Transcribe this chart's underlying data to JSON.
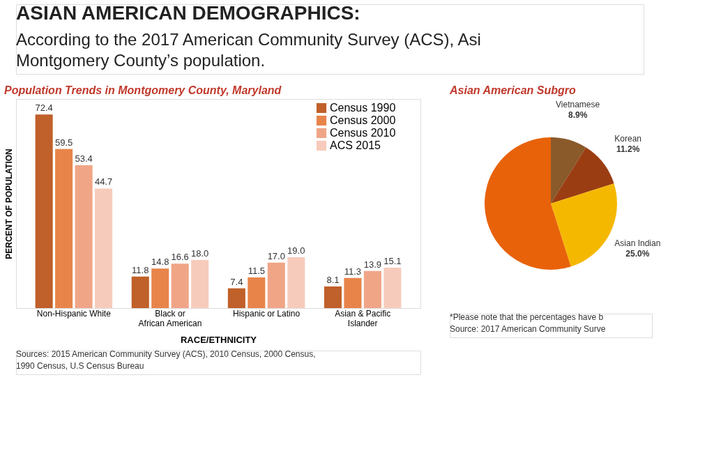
{
  "chart_data": [
    {
      "type": "other",
      "title": "ASIAN AMERICAN DEMOGRAPHICS:",
      "subtitle": "According to the 2017 American Community Survey (ACS), Asi\nMontgomery County’s population."
    },
    {
      "type": "bar",
      "title": "Population Trends in Montgomery County, Maryland",
      "xlabel": "RACE/ETHNICITY",
      "ylabel": "PERCENT OF POPULATION",
      "categories": [
        "Non-Hispanic White",
        "Black or\nAfrican American",
        "Hispanic or Latino",
        "Asian & Pacific\nIslander"
      ],
      "series": [
        {
          "name": "Census 1990",
          "color": "#c0602a",
          "values": [
            72.4,
            11.8,
            7.4,
            8.1
          ],
          "value_labels": [
            "72.4",
            "11.8",
            "7.4",
            "8.1"
          ]
        },
        {
          "name": "Census 2000",
          "color": "#e8844a",
          "values": [
            59.5,
            14.8,
            11.5,
            11.3
          ],
          "value_labels": [
            "59.5",
            "14.8",
            "11.5",
            "11.3"
          ]
        },
        {
          "name": "Census 2010",
          "color": "#f0a587",
          "values": [
            53.4,
            16.6,
            17.0,
            13.9
          ],
          "value_labels": [
            "53.4",
            "16.6",
            "17.0",
            "13.9"
          ]
        },
        {
          "name": "ACS 2015",
          "color": "#f7cbbb",
          "values": [
            44.7,
            18.0,
            19.0,
            15.1
          ],
          "value_labels": [
            "44.7",
            "18.0",
            "19.0",
            "15.1"
          ]
        }
      ],
      "legend": "top right",
      "grid": false,
      "tick_labels": "x",
      "annotations": [
        "Sources: 2015 American Community Survey (ACS), 2010 Census, 2000 Census,\n1990 Census, U.S Census Bureau"
      ]
    },
    {
      "type": "pie",
      "title": "Asian American Subgro",
      "categories": [
        "Vietnamese",
        "Korean",
        "Asian Indian",
        null
      ],
      "values": [
        8.9,
        11.2,
        25.0,
        54.9
      ],
      "value_labels": [
        "8.9%",
        "11.2%",
        "25.0%",
        null
      ],
      "colors": [
        "#8a5a2b",
        "#9b3d12",
        "#f5b800",
        "#e8620a"
      ],
      "annotations": [
        "*Please note that the percentages have b",
        "Source: 2017 American Community Surve"
      ]
    }
  ]
}
